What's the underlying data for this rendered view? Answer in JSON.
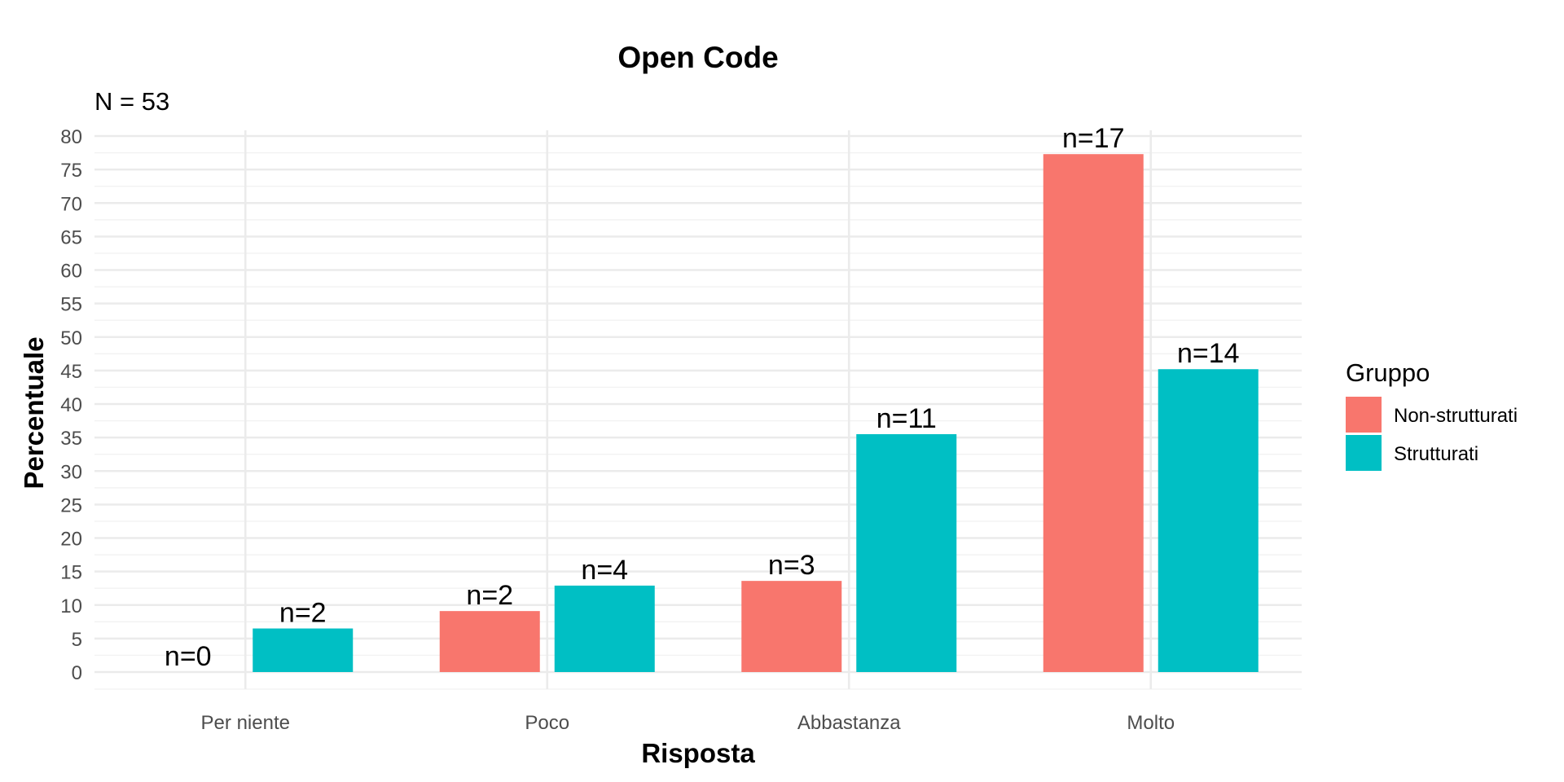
{
  "chart_data": {
    "type": "bar",
    "title": "Open Code",
    "subtitle": "N = 53",
    "xlabel": "Risposta",
    "ylabel": "Percentuale",
    "categories": [
      "Per niente",
      "Poco",
      "Abbastanza",
      "Molto"
    ],
    "ylim": [
      0,
      80
    ],
    "yticks": [
      0,
      5,
      10,
      15,
      20,
      25,
      30,
      35,
      40,
      45,
      50,
      55,
      60,
      65,
      70,
      75,
      80
    ],
    "grid": true,
    "legend": {
      "title": "Gruppo",
      "position": "right"
    },
    "series": [
      {
        "name": "Non-strutturati",
        "color": "#F8766D",
        "values": [
          0,
          9.1,
          13.6,
          77.3
        ],
        "labels": [
          "n=0",
          "n=2",
          "n=3",
          "n=17"
        ]
      },
      {
        "name": "Strutturati",
        "color": "#00BFC4",
        "values": [
          6.5,
          12.9,
          35.5,
          45.2
        ],
        "labels": [
          "n=2",
          "n=4",
          "n=11",
          "n=14"
        ]
      }
    ]
  }
}
